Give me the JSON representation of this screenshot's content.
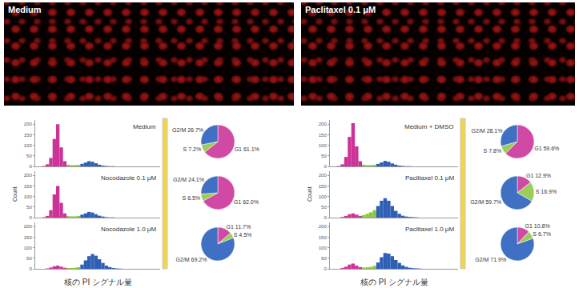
{
  "images": [
    {
      "label": "Medium"
    },
    {
      "label": "Paclitaxel 0.1 μM"
    }
  ],
  "chart_data": [
    {
      "type": "histogram",
      "title": "Medium",
      "bins": [
        2,
        3,
        4,
        5,
        6,
        7,
        8,
        9,
        10,
        11,
        12,
        13,
        14,
        15,
        16,
        17,
        18,
        19,
        20,
        21,
        22,
        23,
        24,
        25,
        26
      ],
      "counts": [
        2,
        10,
        40,
        130,
        200,
        90,
        25,
        8,
        6,
        6,
        7,
        12,
        18,
        25,
        22,
        15,
        8,
        4,
        2,
        1,
        1,
        0,
        0,
        0
      ],
      "colors": [
        "#cc3399",
        "#cc3399",
        "#cc3399",
        "#cc3399",
        "#cc3399",
        "#cc3399",
        "#cc3399",
        "#8dc63f",
        "#8dc63f",
        "#8dc63f",
        "#8dc63f",
        "#2e5fb5",
        "#2e5fb5",
        "#2e5fb5",
        "#2e5fb5",
        "#2e5fb5",
        "#2e5fb5",
        "#2e5fb5",
        "#2e5fb5",
        "#2e5fb5",
        "#2e5fb5",
        "#2e5fb5",
        "#2e5fb5",
        "#2e5fb5"
      ],
      "xlim": [
        0,
        36
      ],
      "ylim": [
        0,
        220
      ],
      "yticks": [
        0,
        50,
        100,
        150,
        200
      ],
      "tick_labels": "y"
    },
    {
      "type": "histogram",
      "title": "Nocodazole 0.1 μM",
      "y_label": "Count",
      "bins": [
        2,
        3,
        4,
        5,
        6,
        7,
        8,
        9,
        10,
        11,
        12,
        13,
        14,
        15,
        16,
        17,
        18,
        19,
        20,
        21,
        22,
        23,
        24,
        25,
        26
      ],
      "counts": [
        2,
        8,
        35,
        110,
        150,
        70,
        20,
        7,
        6,
        6,
        8,
        14,
        20,
        27,
        24,
        16,
        9,
        5,
        2,
        1,
        1,
        0,
        0,
        0
      ],
      "colors": [
        "#cc3399",
        "#cc3399",
        "#cc3399",
        "#cc3399",
        "#cc3399",
        "#cc3399",
        "#cc3399",
        "#8dc63f",
        "#8dc63f",
        "#8dc63f",
        "#8dc63f",
        "#2e5fb5",
        "#2e5fb5",
        "#2e5fb5",
        "#2e5fb5",
        "#2e5fb5",
        "#2e5fb5",
        "#2e5fb5",
        "#2e5fb5",
        "#2e5fb5",
        "#2e5fb5",
        "#2e5fb5",
        "#2e5fb5",
        "#2e5fb5"
      ],
      "xlim": [
        0,
        36
      ],
      "ylim": [
        0,
        220
      ],
      "yticks": [
        0,
        50,
        100,
        150,
        200
      ],
      "tick_labels": "y"
    },
    {
      "type": "histogram",
      "title": "Nocodazole 1.0 μM",
      "x_label": "核の PI シグナル量",
      "bins": [
        2,
        3,
        4,
        5,
        6,
        7,
        8,
        9,
        10,
        11,
        12,
        13,
        14,
        15,
        16,
        17,
        18,
        19,
        20,
        21,
        22,
        23,
        24,
        25,
        26
      ],
      "counts": [
        0,
        2,
        6,
        12,
        15,
        10,
        5,
        4,
        4,
        5,
        8,
        20,
        40,
        60,
        70,
        62,
        45,
        28,
        15,
        8,
        4,
        2,
        1,
        0
      ],
      "colors": [
        "#cc3399",
        "#cc3399",
        "#cc3399",
        "#cc3399",
        "#cc3399",
        "#cc3399",
        "#cc3399",
        "#8dc63f",
        "#8dc63f",
        "#8dc63f",
        "#8dc63f",
        "#2e5fb5",
        "#2e5fb5",
        "#2e5fb5",
        "#2e5fb5",
        "#2e5fb5",
        "#2e5fb5",
        "#2e5fb5",
        "#2e5fb5",
        "#2e5fb5",
        "#2e5fb5",
        "#2e5fb5",
        "#2e5fb5",
        "#2e5fb5"
      ],
      "xlim": [
        0,
        36
      ],
      "ylim": [
        0,
        220
      ],
      "yticks": [
        0,
        50,
        100,
        150,
        200
      ],
      "tick_labels": "y"
    },
    {
      "type": "histogram",
      "title": "Medium + DMSO",
      "bins": [
        2,
        3,
        4,
        5,
        6,
        7,
        8,
        9,
        10,
        11,
        12,
        13,
        14,
        15,
        16,
        17,
        18,
        19,
        20,
        21,
        22,
        23,
        24,
        25,
        26
      ],
      "counts": [
        2,
        10,
        45,
        140,
        205,
        95,
        25,
        8,
        6,
        6,
        7,
        12,
        19,
        26,
        22,
        14,
        8,
        4,
        2,
        1,
        1,
        0,
        0,
        0
      ],
      "colors": [
        "#cc3399",
        "#cc3399",
        "#cc3399",
        "#cc3399",
        "#cc3399",
        "#cc3399",
        "#cc3399",
        "#8dc63f",
        "#8dc63f",
        "#8dc63f",
        "#8dc63f",
        "#2e5fb5",
        "#2e5fb5",
        "#2e5fb5",
        "#2e5fb5",
        "#2e5fb5",
        "#2e5fb5",
        "#2e5fb5",
        "#2e5fb5",
        "#2e5fb5",
        "#2e5fb5",
        "#2e5fb5",
        "#2e5fb5",
        "#2e5fb5"
      ],
      "xlim": [
        0,
        36
      ],
      "ylim": [
        0,
        220
      ],
      "yticks": [
        0,
        50,
        100,
        150,
        200
      ],
      "tick_labels": "y"
    },
    {
      "type": "histogram",
      "title": "Paclitaxel 0.1 μM",
      "y_label": "Count",
      "bins": [
        2,
        3,
        4,
        5,
        6,
        7,
        8,
        9,
        10,
        11,
        12,
        13,
        14,
        15,
        16,
        17,
        18,
        19,
        20,
        21,
        22,
        23,
        24,
        25,
        26
      ],
      "counts": [
        0,
        3,
        8,
        16,
        20,
        14,
        8,
        12,
        18,
        25,
        35,
        55,
        80,
        92,
        80,
        55,
        32,
        18,
        9,
        5,
        3,
        2,
        1,
        0
      ],
      "colors": [
        "#cc3399",
        "#cc3399",
        "#cc3399",
        "#cc3399",
        "#cc3399",
        "#cc3399",
        "#cc3399",
        "#8dc63f",
        "#8dc63f",
        "#8dc63f",
        "#8dc63f",
        "#2e5fb5",
        "#2e5fb5",
        "#2e5fb5",
        "#2e5fb5",
        "#2e5fb5",
        "#2e5fb5",
        "#2e5fb5",
        "#2e5fb5",
        "#2e5fb5",
        "#2e5fb5",
        "#2e5fb5",
        "#2e5fb5",
        "#2e5fb5"
      ],
      "xlim": [
        0,
        36
      ],
      "ylim": [
        0,
        220
      ],
      "yticks": [
        0,
        50,
        100,
        150,
        200
      ],
      "tick_labels": "y"
    },
    {
      "type": "histogram",
      "title": "Paclitaxel 1.0 μM",
      "x_label": "核の PI シグナル量",
      "bins": [
        2,
        3,
        4,
        5,
        6,
        7,
        8,
        9,
        10,
        11,
        12,
        13,
        14,
        15,
        16,
        17,
        18,
        19,
        20,
        21,
        22,
        23,
        24,
        25,
        26
      ],
      "counts": [
        0,
        4,
        10,
        20,
        25,
        15,
        8,
        6,
        7,
        9,
        14,
        30,
        55,
        75,
        72,
        60,
        42,
        28,
        16,
        9,
        5,
        3,
        2,
        1
      ],
      "colors": [
        "#cc3399",
        "#cc3399",
        "#cc3399",
        "#cc3399",
        "#cc3399",
        "#cc3399",
        "#cc3399",
        "#8dc63f",
        "#8dc63f",
        "#8dc63f",
        "#8dc63f",
        "#2e5fb5",
        "#2e5fb5",
        "#2e5fb5",
        "#2e5fb5",
        "#2e5fb5",
        "#2e5fb5",
        "#2e5fb5",
        "#2e5fb5",
        "#2e5fb5",
        "#2e5fb5",
        "#2e5fb5",
        "#2e5fb5",
        "#2e5fb5"
      ],
      "xlim": [
        0,
        36
      ],
      "ylim": [
        0,
        220
      ],
      "yticks": [
        0,
        50,
        100,
        150,
        200
      ],
      "tick_labels": "y"
    },
    {
      "type": "pie",
      "categories": [
        "G1",
        "S",
        "G2/M"
      ],
      "values": [
        61.1,
        7.2,
        26.7
      ],
      "value_labels": [
        "G1 61.1%",
        "S 7.2%",
        "G2/M 26.7%"
      ],
      "colors": [
        "#d04aa5",
        "#9ccc5a",
        "#3f70c4"
      ]
    },
    {
      "type": "pie",
      "categories": [
        "G1",
        "S",
        "G2/M"
      ],
      "values": [
        62.0,
        6.5,
        24.1
      ],
      "value_labels": [
        "G1 62.0%",
        "S 6.5%",
        "G2/M 24.1%"
      ],
      "colors": [
        "#d04aa5",
        "#9ccc5a",
        "#3f70c4"
      ]
    },
    {
      "type": "pie",
      "categories": [
        "G1",
        "S",
        "G2/M"
      ],
      "values": [
        11.7,
        4.5,
        69.2
      ],
      "value_labels": [
        "G1 11.7%",
        "S 4.5%",
        "G2/M 69.2%"
      ],
      "colors": [
        "#d04aa5",
        "#9ccc5a",
        "#3f70c4"
      ]
    },
    {
      "type": "pie",
      "categories": [
        "G1",
        "S",
        "G2/M"
      ],
      "values": [
        59.6,
        7.8,
        28.1
      ],
      "value_labels": [
        "G1 59.6%",
        "S 7.8%",
        "G2/M 28.1%"
      ],
      "colors": [
        "#d04aa5",
        "#9ccc5a",
        "#3f70c4"
      ]
    },
    {
      "type": "pie",
      "categories": [
        "G1",
        "S",
        "G2/M"
      ],
      "values": [
        12.9,
        16.9,
        59.7
      ],
      "value_labels": [
        "G1 12.9%",
        "S 16.9%",
        "G2/M 59.7%"
      ],
      "colors": [
        "#d04aa5",
        "#9ccc5a",
        "#3f70c4"
      ]
    },
    {
      "type": "pie",
      "categories": [
        "G1",
        "S",
        "G2/M"
      ],
      "values": [
        10.8,
        6.7,
        71.9
      ],
      "value_labels": [
        "G1 10.8%",
        "S 6.7%",
        "G2/M 71.9%"
      ],
      "colors": [
        "#d04aa5",
        "#9ccc5a",
        "#3f70c4"
      ]
    }
  ]
}
